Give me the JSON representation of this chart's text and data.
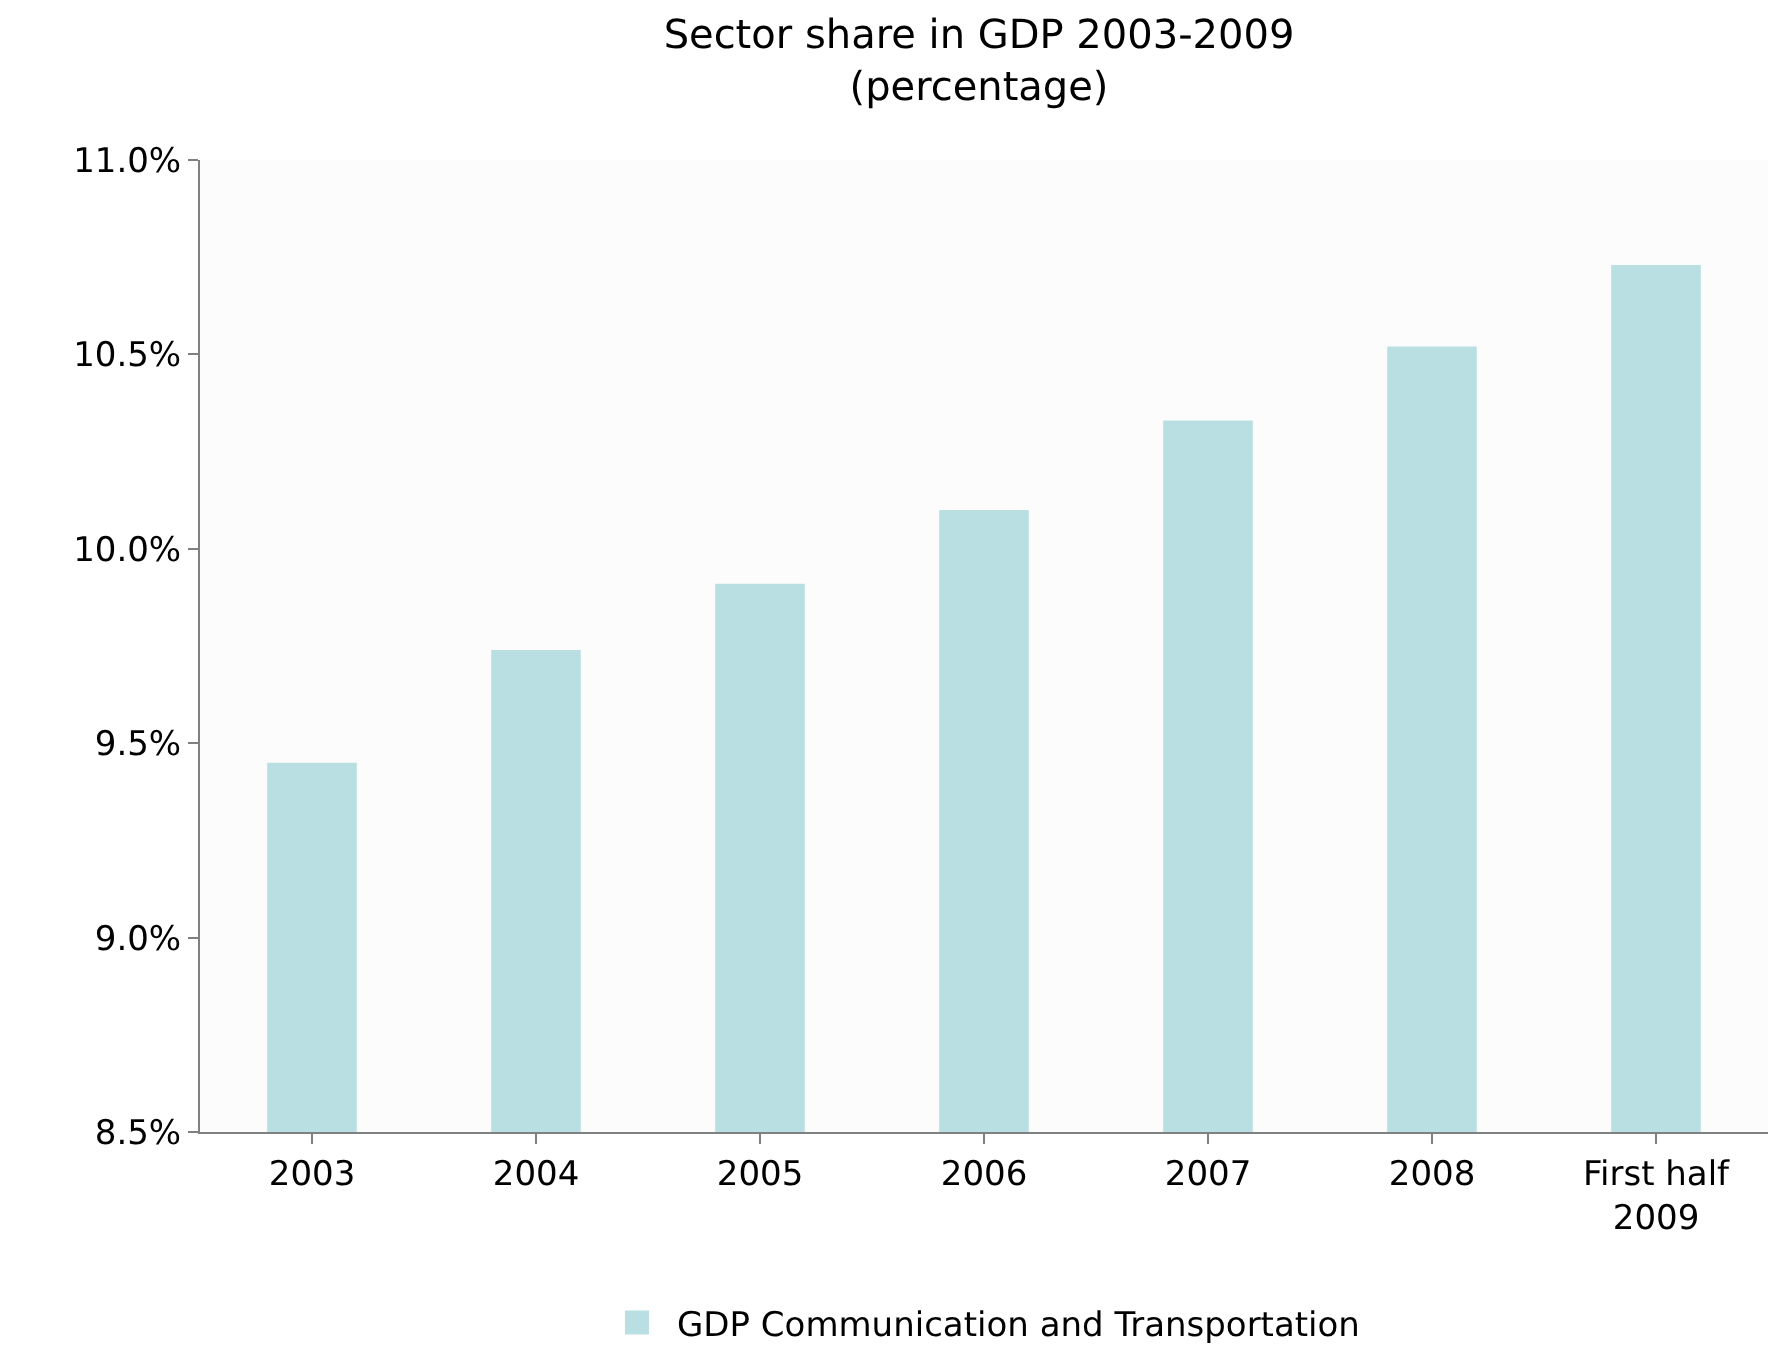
{
  "chart_data": {
    "type": "bar",
    "title": "Sector share in GDP 2003-2009",
    "subtitle": "(percentage)",
    "categories": [
      "2003",
      "2004",
      "2005",
      "2006",
      "2007",
      "2008",
      "First half 2009"
    ],
    "series": [
      {
        "name": "GDP Communication and Transportation",
        "color": "#b9dfe3",
        "values": [
          9.45,
          9.74,
          9.91,
          10.1,
          10.33,
          10.52,
          10.73
        ]
      }
    ],
    "ylim": [
      8.5,
      11.0
    ],
    "yticks": [
      {
        "value": 8.5,
        "label": "8.5%"
      },
      {
        "value": 9.0,
        "label": "9.0%"
      },
      {
        "value": 9.5,
        "label": "9.5%"
      },
      {
        "value": 10.0,
        "label": "10.0%"
      },
      {
        "value": 10.5,
        "label": "10.5%"
      },
      {
        "value": 11.0,
        "label": "11.0%"
      }
    ],
    "legend": "bottom"
  }
}
